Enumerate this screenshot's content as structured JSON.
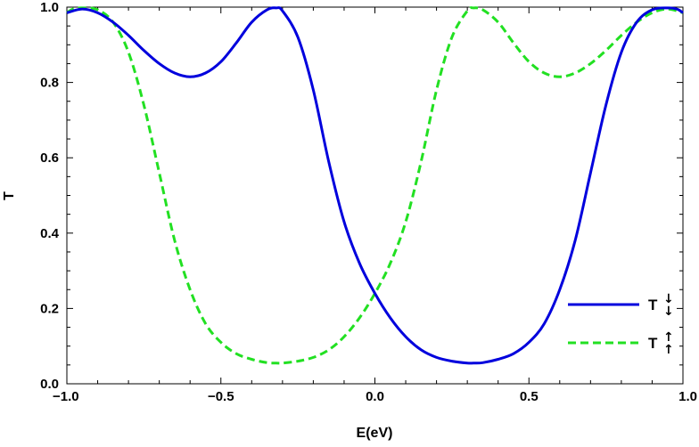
{
  "chart_data": {
    "type": "line",
    "title": "",
    "xlabel": "E(eV)",
    "ylabel": "T",
    "xlim": [
      -1.0,
      1.0
    ],
    "ylim": [
      0.0,
      1.0
    ],
    "x_ticks": [
      "-1.0",
      "-0.5",
      "0.0",
      "0.5",
      "1.0"
    ],
    "y_ticks": [
      "0.0",
      "0.2",
      "0.4",
      "0.6",
      "0.8",
      "1.0"
    ],
    "grid": false,
    "legend_position": "right",
    "series": [
      {
        "name": "T",
        "name_arrow": "↓",
        "color": "#0000dd",
        "style": "solid",
        "x": [
          -1.0,
          -0.95,
          -0.9,
          -0.85,
          -0.8,
          -0.75,
          -0.7,
          -0.65,
          -0.6,
          -0.55,
          -0.5,
          -0.45,
          -0.4,
          -0.35,
          -0.32,
          -0.3,
          -0.25,
          -0.2,
          -0.15,
          -0.1,
          -0.05,
          0.0,
          0.05,
          0.1,
          0.15,
          0.2,
          0.25,
          0.3,
          0.32,
          0.35,
          0.4,
          0.45,
          0.5,
          0.55,
          0.6,
          0.65,
          0.7,
          0.75,
          0.8,
          0.85,
          0.9,
          0.95,
          0.98,
          1.0
        ],
        "y": [
          0.985,
          0.995,
          0.985,
          0.96,
          0.925,
          0.885,
          0.85,
          0.825,
          0.815,
          0.825,
          0.855,
          0.905,
          0.96,
          0.993,
          0.998,
          0.99,
          0.92,
          0.78,
          0.59,
          0.43,
          0.32,
          0.24,
          0.175,
          0.125,
          0.09,
          0.07,
          0.06,
          0.055,
          0.055,
          0.056,
          0.065,
          0.08,
          0.11,
          0.16,
          0.25,
          0.38,
          0.56,
          0.74,
          0.88,
          0.96,
          0.993,
          0.998,
          0.995,
          0.985
        ]
      },
      {
        "name": "T",
        "name_arrow": "↑",
        "color": "#22e022",
        "style": "dashed",
        "x": [
          -1.0,
          -0.98,
          -0.95,
          -0.9,
          -0.85,
          -0.8,
          -0.75,
          -0.7,
          -0.65,
          -0.6,
          -0.55,
          -0.5,
          -0.45,
          -0.4,
          -0.35,
          -0.32,
          -0.3,
          -0.25,
          -0.2,
          -0.15,
          -0.1,
          -0.05,
          0.0,
          0.05,
          0.1,
          0.15,
          0.2,
          0.25,
          0.3,
          0.32,
          0.35,
          0.4,
          0.45,
          0.5,
          0.55,
          0.6,
          0.65,
          0.7,
          0.75,
          0.8,
          0.85,
          0.9,
          0.95,
          1.0
        ],
        "y": [
          0.985,
          0.995,
          0.998,
          0.993,
          0.96,
          0.88,
          0.74,
          0.56,
          0.38,
          0.25,
          0.16,
          0.11,
          0.08,
          0.065,
          0.056,
          0.055,
          0.055,
          0.06,
          0.07,
          0.09,
          0.125,
          0.175,
          0.24,
          0.32,
          0.43,
          0.59,
          0.78,
          0.92,
          0.99,
          0.998,
          0.993,
          0.96,
          0.905,
          0.855,
          0.825,
          0.815,
          0.825,
          0.85,
          0.885,
          0.925,
          0.96,
          0.985,
          0.995,
          0.985
        ]
      }
    ]
  }
}
